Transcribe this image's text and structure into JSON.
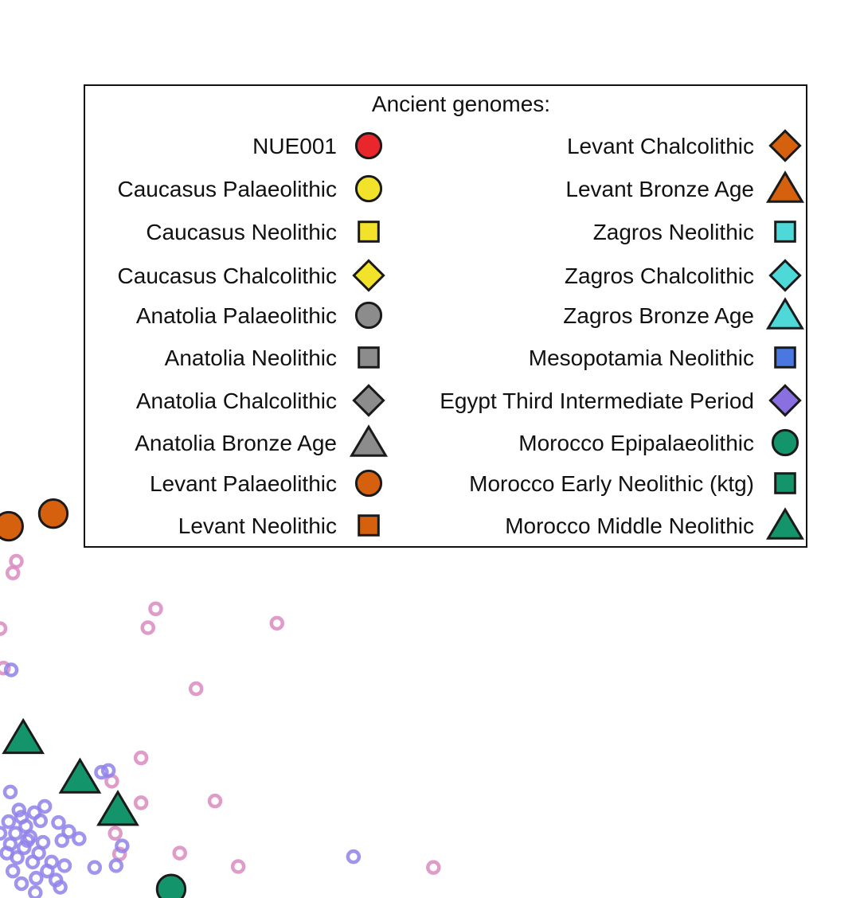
{
  "chart_data": {
    "type": "scatter",
    "legend": {
      "title": "Ancient genomes:",
      "placement": "top-right",
      "entries": [
        {
          "label": "NUE001",
          "marker": "circle",
          "color": "#e8262c"
        },
        {
          "label": "Caucasus Palaeolithic",
          "marker": "circle",
          "color": "#f2e22a"
        },
        {
          "label": "Caucasus Neolithic",
          "marker": "square",
          "color": "#f2e22a"
        },
        {
          "label": "Caucasus Chalcolithic",
          "marker": "diamond",
          "color": "#f2e22a"
        },
        {
          "label": "Anatolia Palaeolithic",
          "marker": "circle",
          "color": "#8c8c8c"
        },
        {
          "label": "Anatolia Neolithic",
          "marker": "square",
          "color": "#8c8c8c"
        },
        {
          "label": "Anatolia Chalcolithic",
          "marker": "diamond",
          "color": "#8c8c8c"
        },
        {
          "label": "Anatolia Bronze Age",
          "marker": "triangle",
          "color": "#8c8c8c"
        },
        {
          "label": "Levant Palaeolithic",
          "marker": "circle",
          "color": "#d5600e"
        },
        {
          "label": "Levant Neolithic",
          "marker": "square",
          "color": "#d5600e"
        },
        {
          "label": "Levant Chalcolithic",
          "marker": "diamond",
          "color": "#d5600e"
        },
        {
          "label": "Levant Bronze Age",
          "marker": "triangle",
          "color": "#d5600e"
        },
        {
          "label": "Zagros Neolithic",
          "marker": "square",
          "color": "#4ed8d8"
        },
        {
          "label": "Zagros Chalcolithic",
          "marker": "diamond",
          "color": "#4ed8d8"
        },
        {
          "label": "Zagros Bronze Age",
          "marker": "triangle",
          "color": "#4ed8d8"
        },
        {
          "label": "Mesopotamia Neolithic",
          "marker": "square",
          "color": "#4a78e0"
        },
        {
          "label": "Egypt Third Intermediate Period",
          "marker": "diamond",
          "color": "#8a6fe0"
        },
        {
          "label": "Morocco Epipalaeolithic",
          "marker": "circle",
          "color": "#14946a"
        },
        {
          "label": "Morocco Early Neolithic (ktg)",
          "marker": "square",
          "color": "#14946a"
        },
        {
          "label": "Morocco Middle Neolithic",
          "marker": "triangle",
          "color": "#14946a"
        }
      ]
    },
    "series": [
      {
        "label_ref": "Levant Palaeolithic",
        "marker": "circle",
        "color": "#d5600e",
        "points": [
          [
            0.01,
            0.414
          ],
          [
            0.062,
            0.428
          ]
        ]
      },
      {
        "label_ref": "Morocco Middle Neolithic",
        "marker": "triangle",
        "color": "#14946a",
        "points": [
          [
            0.027,
            0.178
          ],
          [
            0.093,
            0.134
          ],
          [
            0.137,
            0.098
          ]
        ]
      },
      {
        "label_ref": "Morocco Epipalaeolithic",
        "marker": "circle",
        "color": "#14946a",
        "points": [
          [
            0.199,
            0.01
          ]
        ]
      },
      {
        "marker": "small-circle",
        "color": "#d98bbf",
        "points": [
          [
            0.019,
            0.375
          ],
          [
            0.015,
            0.362
          ],
          [
            0.181,
            0.322
          ],
          [
            0.172,
            0.301
          ],
          [
            0.322,
            0.306
          ],
          [
            0.004,
            0.256
          ],
          [
            0.228,
            0.233
          ],
          [
            0.164,
            0.156
          ],
          [
            0.13,
            0.13
          ],
          [
            0.164,
            0.106
          ],
          [
            0.25,
            0.108
          ],
          [
            0.134,
            0.072
          ],
          [
            0.139,
            0.049
          ],
          [
            0.209,
            0.05
          ],
          [
            0.277,
            0.035
          ],
          [
            0.504,
            0.034
          ],
          [
            0.0,
            0.3
          ]
        ]
      },
      {
        "marker": "small-circle",
        "color": "#8f82ea",
        "points": [
          [
            0.013,
            0.254
          ],
          [
            0.118,
            0.14
          ],
          [
            0.126,
            0.142
          ],
          [
            0.012,
            0.118
          ],
          [
            0.052,
            0.102
          ],
          [
            0.068,
            0.084
          ],
          [
            0.08,
            0.074
          ],
          [
            0.092,
            0.066
          ],
          [
            0.072,
            0.064
          ],
          [
            0.04,
            0.095
          ],
          [
            0.025,
            0.09
          ],
          [
            0.01,
            0.085
          ],
          [
            0.03,
            0.08
          ],
          [
            0.018,
            0.072
          ],
          [
            0.035,
            0.068
          ],
          [
            0.05,
            0.062
          ],
          [
            0.012,
            0.06
          ],
          [
            0.028,
            0.056
          ],
          [
            0.045,
            0.05
          ],
          [
            0.02,
            0.045
          ],
          [
            0.038,
            0.04
          ],
          [
            0.06,
            0.04
          ],
          [
            0.008,
            0.05
          ],
          [
            0.075,
            0.036
          ],
          [
            0.055,
            0.03
          ],
          [
            0.015,
            0.03
          ],
          [
            0.042,
            0.022
          ],
          [
            0.065,
            0.02
          ],
          [
            0.11,
            0.034
          ],
          [
            0.142,
            0.058
          ],
          [
            0.135,
            0.036
          ],
          [
            0.411,
            0.046
          ],
          [
            0.025,
            0.016
          ],
          [
            0.07,
            0.012
          ],
          [
            0.041,
            0.006
          ],
          [
            0.0,
            0.072
          ],
          [
            0.022,
            0.098
          ],
          [
            0.032,
            0.064
          ],
          [
            0.047,
            0.086
          ]
        ]
      }
    ],
    "xlim": [
      0,
      1
    ],
    "ylim": [
      0,
      1
    ],
    "grid": false,
    "xlabel": "",
    "ylabel": ""
  }
}
